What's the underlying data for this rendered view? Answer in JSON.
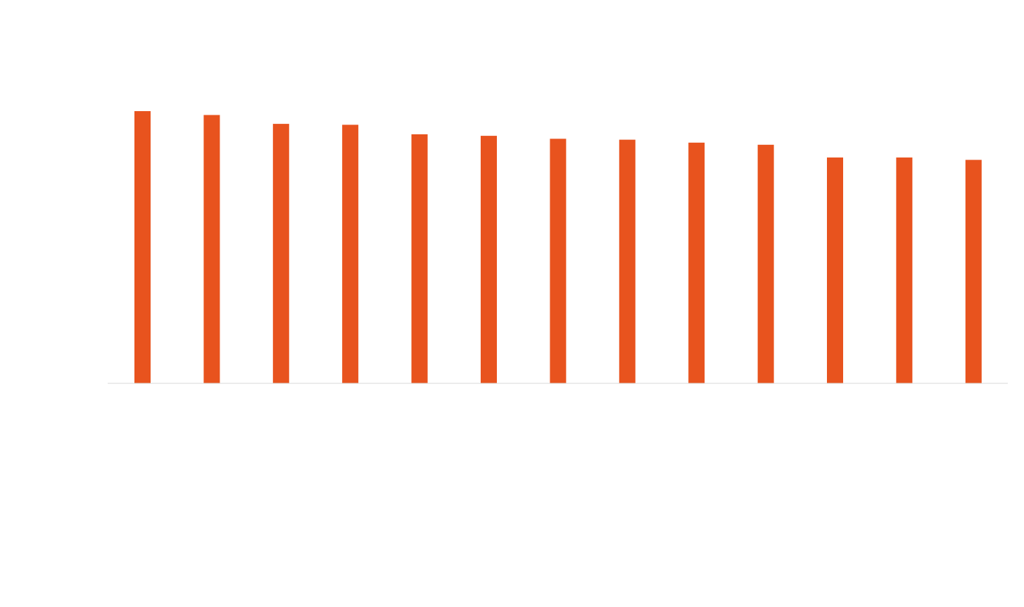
{
  "colors": {
    "background": "#ffffff",
    "bar": "#E8531E",
    "baseline": "#d9d9d9"
  },
  "chart_data": {
    "type": "bar",
    "title": "",
    "xlabel": "",
    "ylabel": "",
    "grid": false,
    "legend": "none",
    "axis_labels_visible": false,
    "ylim": [
      0,
      100
    ],
    "series": [
      {
        "values": [
          91.5,
          90.2,
          87.2,
          86.9,
          83.7,
          83.2,
          82.2,
          81.9,
          80.9,
          80.2,
          75.9,
          75.9,
          75.1
        ]
      }
    ]
  }
}
